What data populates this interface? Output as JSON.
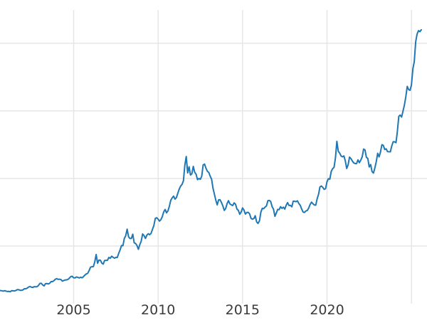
{
  "chart_data": {
    "type": "line",
    "title": "",
    "xlabel": "",
    "ylabel": "",
    "legend": "none",
    "grid": true,
    "x_ticks": [
      {
        "year": 2005,
        "label": "2005"
      },
      {
        "year": 2010,
        "label": "2010"
      },
      {
        "year": 2015,
        "label": "2015"
      },
      {
        "year": 2020,
        "label": "2020"
      },
      {
        "year": 2025,
        "label": ""
      }
    ],
    "y_gridline_values": [
      800,
      1600,
      2400,
      3200
    ],
    "x_range": [
      2000.64,
      2025.92
    ],
    "y_range": [
      118,
      3595
    ],
    "series": [
      {
        "name": "",
        "color": "#1f77b4",
        "start": {
          "year": 2000,
          "month": 8
        },
        "interval": "monthly",
        "values": [
          274,
          273,
          270,
          266,
          272,
          266,
          262,
          263,
          260,
          272,
          270,
          268,
          274,
          284,
          283,
          276,
          276,
          281,
          295,
          294,
          302,
          314,
          321,
          313,
          310,
          319,
          317,
          319,
          333,
          357,
          359,
          340,
          328,
          355,
          356,
          351,
          360,
          379,
          379,
          390,
          407,
          414,
          405,
          407,
          403,
          384,
          392,
          398,
          400,
          405,
          420,
          439,
          442,
          424,
          423,
          434,
          429,
          422,
          431,
          424,
          438,
          456,
          470,
          477,
          510,
          550,
          555,
          557,
          611,
          700,
          596,
          634,
          632,
          598,
          586,
          628,
          630,
          631,
          665,
          655,
          679,
          667,
          656,
          665,
          665,
          713,
          755,
          806,
          804,
          890,
          922,
          1000,
          910,
          889,
          889,
          940,
          839,
          830,
          807,
          761,
          816,
          858,
          943,
          924,
          890,
          929,
          946,
          934,
          950,
          997,
          1043,
          1127,
          1135,
          1118,
          1095,
          1113,
          1149,
          1205,
          1233,
          1193,
          1216,
          1271,
          1342,
          1370,
          1391,
          1356,
          1373,
          1424,
          1474,
          1510,
          1529,
          1573,
          1757,
          1860,
          1666,
          1739,
          1641,
          1656,
          1743,
          1674,
          1650,
          1586,
          1600,
          1590,
          1626,
          1760,
          1770,
          1722,
          1685,
          1671,
          1627,
          1593,
          1485,
          1414,
          1343,
          1287,
          1347,
          1348,
          1316,
          1276,
          1222,
          1244,
          1301,
          1337,
          1299,
          1288,
          1279,
          1311,
          1296,
          1238,
          1223,
          1176,
          1201,
          1251,
          1227,
          1178,
          1198,
          1199,
          1181,
          1128,
          1118,
          1125,
          1159,
          1086,
          1068,
          1098,
          1200,
          1246,
          1242,
          1261,
          1276,
          1337,
          1340,
          1327,
          1266,
          1236,
          1152,
          1192,
          1234,
          1231,
          1266,
          1246,
          1260,
          1237,
          1283,
          1314,
          1280,
          1282,
          1264,
          1331,
          1330,
          1325,
          1335,
          1303,
          1282,
          1238,
          1202,
          1198,
          1215,
          1221,
          1250,
          1292,
          1320,
          1301,
          1286,
          1284,
          1359,
          1413,
          1500,
          1511,
          1495,
          1471,
          1480,
          1561,
          1597,
          1592,
          1683,
          1716,
          1732,
          1843,
          2040,
          1922,
          1900,
          1866,
          1856,
          1867,
          1808,
          1718,
          1762,
          1853,
          1835,
          1807,
          1784,
          1777,
          1777,
          1820,
          1787,
          1817,
          1856,
          1948,
          1937,
          1850,
          1836,
          1736,
          1765,
          1681,
          1664,
          1725,
          1798,
          1898,
          1856,
          1913,
          2000,
          1992,
          1943,
          1951,
          1918,
          1916,
          1915,
          1984,
          2034,
          2034,
          2023,
          2160,
          2335,
          2351,
          2327,
          2398,
          2470,
          2568,
          2690,
          2652,
          2644,
          2708,
          2897,
          2983,
          3218,
          3310,
          3350,
          3338,
          3360
        ]
      }
    ]
  },
  "colors": {
    "line": "#1f77b4",
    "grid": "#e6e6e6",
    "tick_label": "#3b3b3b",
    "background": "#ffffff"
  }
}
